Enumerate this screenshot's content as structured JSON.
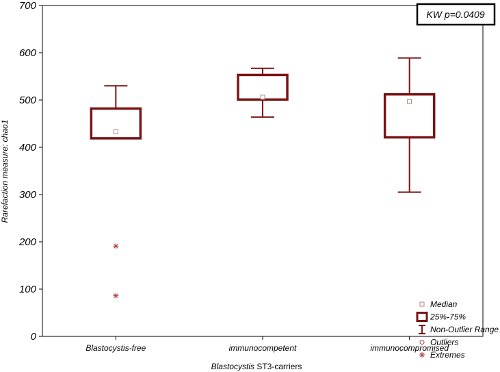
{
  "chart_data": {
    "type": "box",
    "ylim": [
      0,
      700
    ],
    "yticks": [
      0,
      100,
      200,
      300,
      400,
      500,
      600,
      700
    ],
    "ylabel": "Rarefaction measure: chao1",
    "xlabel_italic": "Blastocystis",
    "xlabel_rest": "ST3-carriers",
    "annotation": "KW p=0.0409",
    "grid": false,
    "legend_position": "bottom-right",
    "colors": {
      "box": "#7a1414",
      "median": "#b08080",
      "extreme": "#b04040"
    },
    "legend": [
      {
        "symbol": "median-square",
        "label": "Median"
      },
      {
        "symbol": "box",
        "label": "25%-75%"
      },
      {
        "symbol": "whisker",
        "label": "Non-Outlier Range"
      },
      {
        "symbol": "circle",
        "label": "Outliers"
      },
      {
        "symbol": "asterisk",
        "label": "Extremes"
      }
    ],
    "categories": [
      "Blastocystis-free",
      "immunocompetent",
      "immunocompromised"
    ],
    "groups": [
      {
        "category": "Blastocystis-free",
        "median": 433,
        "q1": 419,
        "q3": 482,
        "whisker_low": 419,
        "whisker_high": 530,
        "outliers": [],
        "extremes": [
          191,
          86
        ]
      },
      {
        "category": "immunocompetent",
        "median": 506,
        "q1": 501,
        "q3": 553,
        "whisker_low": 464,
        "whisker_high": 567,
        "outliers": [],
        "extremes": []
      },
      {
        "category": "immunocompromised",
        "median": 497,
        "q1": 421,
        "q3": 512,
        "whisker_low": 305,
        "whisker_high": 589,
        "outliers": [],
        "extremes": []
      }
    ]
  }
}
